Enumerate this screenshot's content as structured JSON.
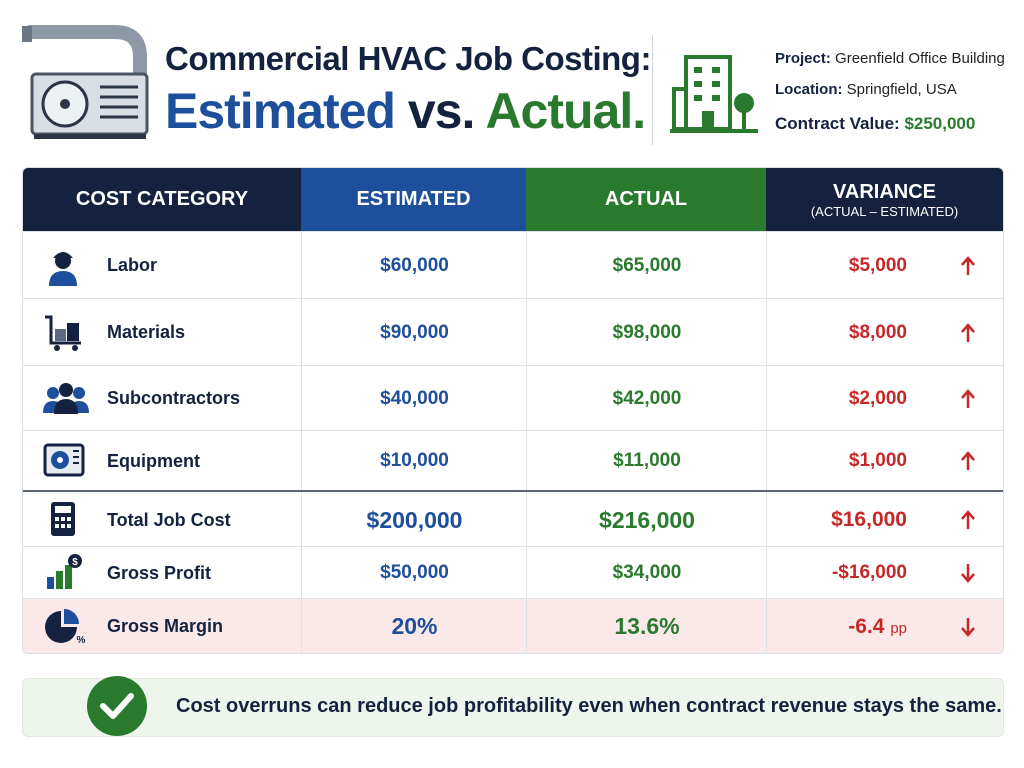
{
  "header": {
    "title_line1": "Commercial HVAC Job Costing:",
    "title_estimated": "Estimated",
    "title_vs": "vs.",
    "title_actual": "Actual.",
    "project_label": "Project:",
    "project": "Greenfield Office Building",
    "location_label": "Location:",
    "location": "Springfield, USA",
    "contract_label": "Contract Value:",
    "contract_value": "$250,000"
  },
  "table": {
    "columns": [
      "COST CATEGORY",
      "ESTIMATED",
      "ACTUAL",
      "VARIANCE"
    ],
    "variance_note": "(ACTUAL – ESTIMATED)",
    "rows": [
      [
        "Labor",
        "$60,000",
        "$65,000",
        "$5,000"
      ],
      [
        "Materials",
        "$90,000",
        "$98,000",
        "$8,000"
      ],
      [
        "Subcontractors",
        "$40,000",
        "$42,000",
        "$2,000"
      ],
      [
        "Equipment",
        "$10,000",
        "$11,000",
        "$1,000"
      ],
      [
        "Total Job Cost",
        "$200,000",
        "$216,000",
        "$16,000"
      ],
      [
        "Gross Profit",
        "$50,000",
        "$34,000",
        "-$16,000"
      ],
      [
        "Gross Margin",
        "20%",
        "13.6%",
        "-6.4"
      ]
    ],
    "margin_variance_unit": "pp"
  },
  "note": "Cost overruns can reduce job profitability even when contract revenue stays the same."
}
